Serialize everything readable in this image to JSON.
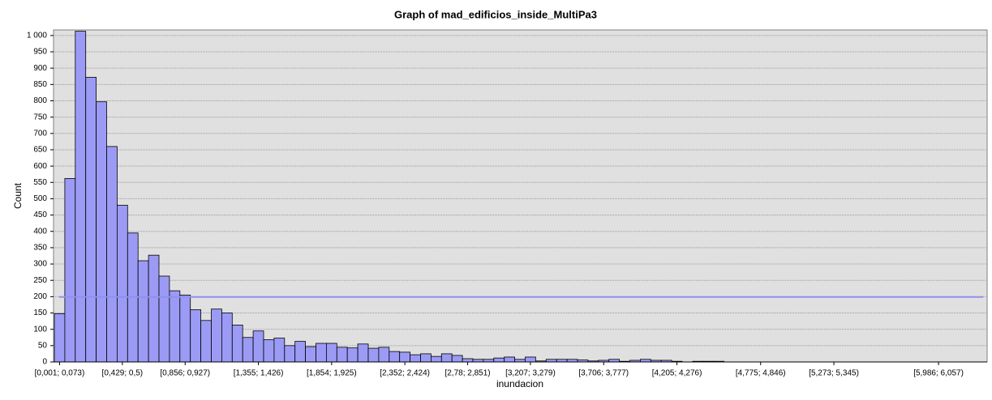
{
  "chart_data": {
    "type": "bar",
    "title": "Graph of mad_edificios_inside_MultiPa3",
    "x_label": "inundacion",
    "y_label": "Count",
    "color": "#9b9bf5",
    "grid": true,
    "reference_line": {
      "value": 199,
      "color": "#8f8ff0"
    },
    "ylim": [
      0,
      1017
    ],
    "yticks": [
      0,
      50,
      100,
      150,
      200,
      250,
      300,
      350,
      400,
      450,
      500,
      550,
      600,
      650,
      700,
      750,
      800,
      850,
      900,
      950,
      {
        "value": 1000,
        "label": "1 000"
      }
    ],
    "categories": [
      "[0,001; 0,073)",
      null,
      null,
      null,
      null,
      null,
      "[0,429; 0,5)",
      null,
      null,
      null,
      null,
      null,
      "[0,856; 0,927)",
      null,
      null,
      null,
      null,
      null,
      null,
      "[1,355; 1,426)",
      null,
      null,
      null,
      null,
      null,
      null,
      "[1,854; 1,925)",
      null,
      null,
      null,
      null,
      null,
      null,
      "[2,352; 2,424)",
      null,
      null,
      null,
      null,
      null,
      "[2,78; 2,851)",
      null,
      null,
      null,
      null,
      null,
      "[3,207; 3,279)",
      null,
      null,
      null,
      null,
      null,
      null,
      "[3,706; 3,777)",
      null,
      null,
      null,
      null,
      null,
      null,
      "[4,205; 4,276)",
      null,
      null,
      null,
      null,
      null,
      null,
      null,
      "[4,775; 4,846)",
      null,
      null,
      null,
      null,
      null,
      null,
      "[5,273; 5,345)",
      null,
      null,
      null,
      null,
      null,
      null,
      null,
      null,
      null,
      "[5,986; 6,057)"
    ],
    "values": [
      148,
      562,
      1013,
      872,
      797,
      660,
      480,
      395,
      310,
      327,
      263,
      218,
      205,
      160,
      127,
      162,
      150,
      113,
      75,
      95,
      68,
      73,
      50,
      63,
      47,
      57,
      57,
      45,
      43,
      55,
      42,
      45,
      32,
      30,
      22,
      25,
      17,
      25,
      20,
      10,
      8,
      8,
      12,
      15,
      8,
      15,
      3,
      8,
      8,
      8,
      6,
      3,
      5,
      8,
      2,
      5,
      8,
      5,
      5,
      2,
      0,
      2,
      2,
      2,
      0,
      0,
      0,
      0,
      0,
      0,
      0,
      0,
      0,
      0,
      0,
      0,
      0,
      0,
      0,
      0,
      0,
      0,
      0,
      0,
      0
    ]
  }
}
